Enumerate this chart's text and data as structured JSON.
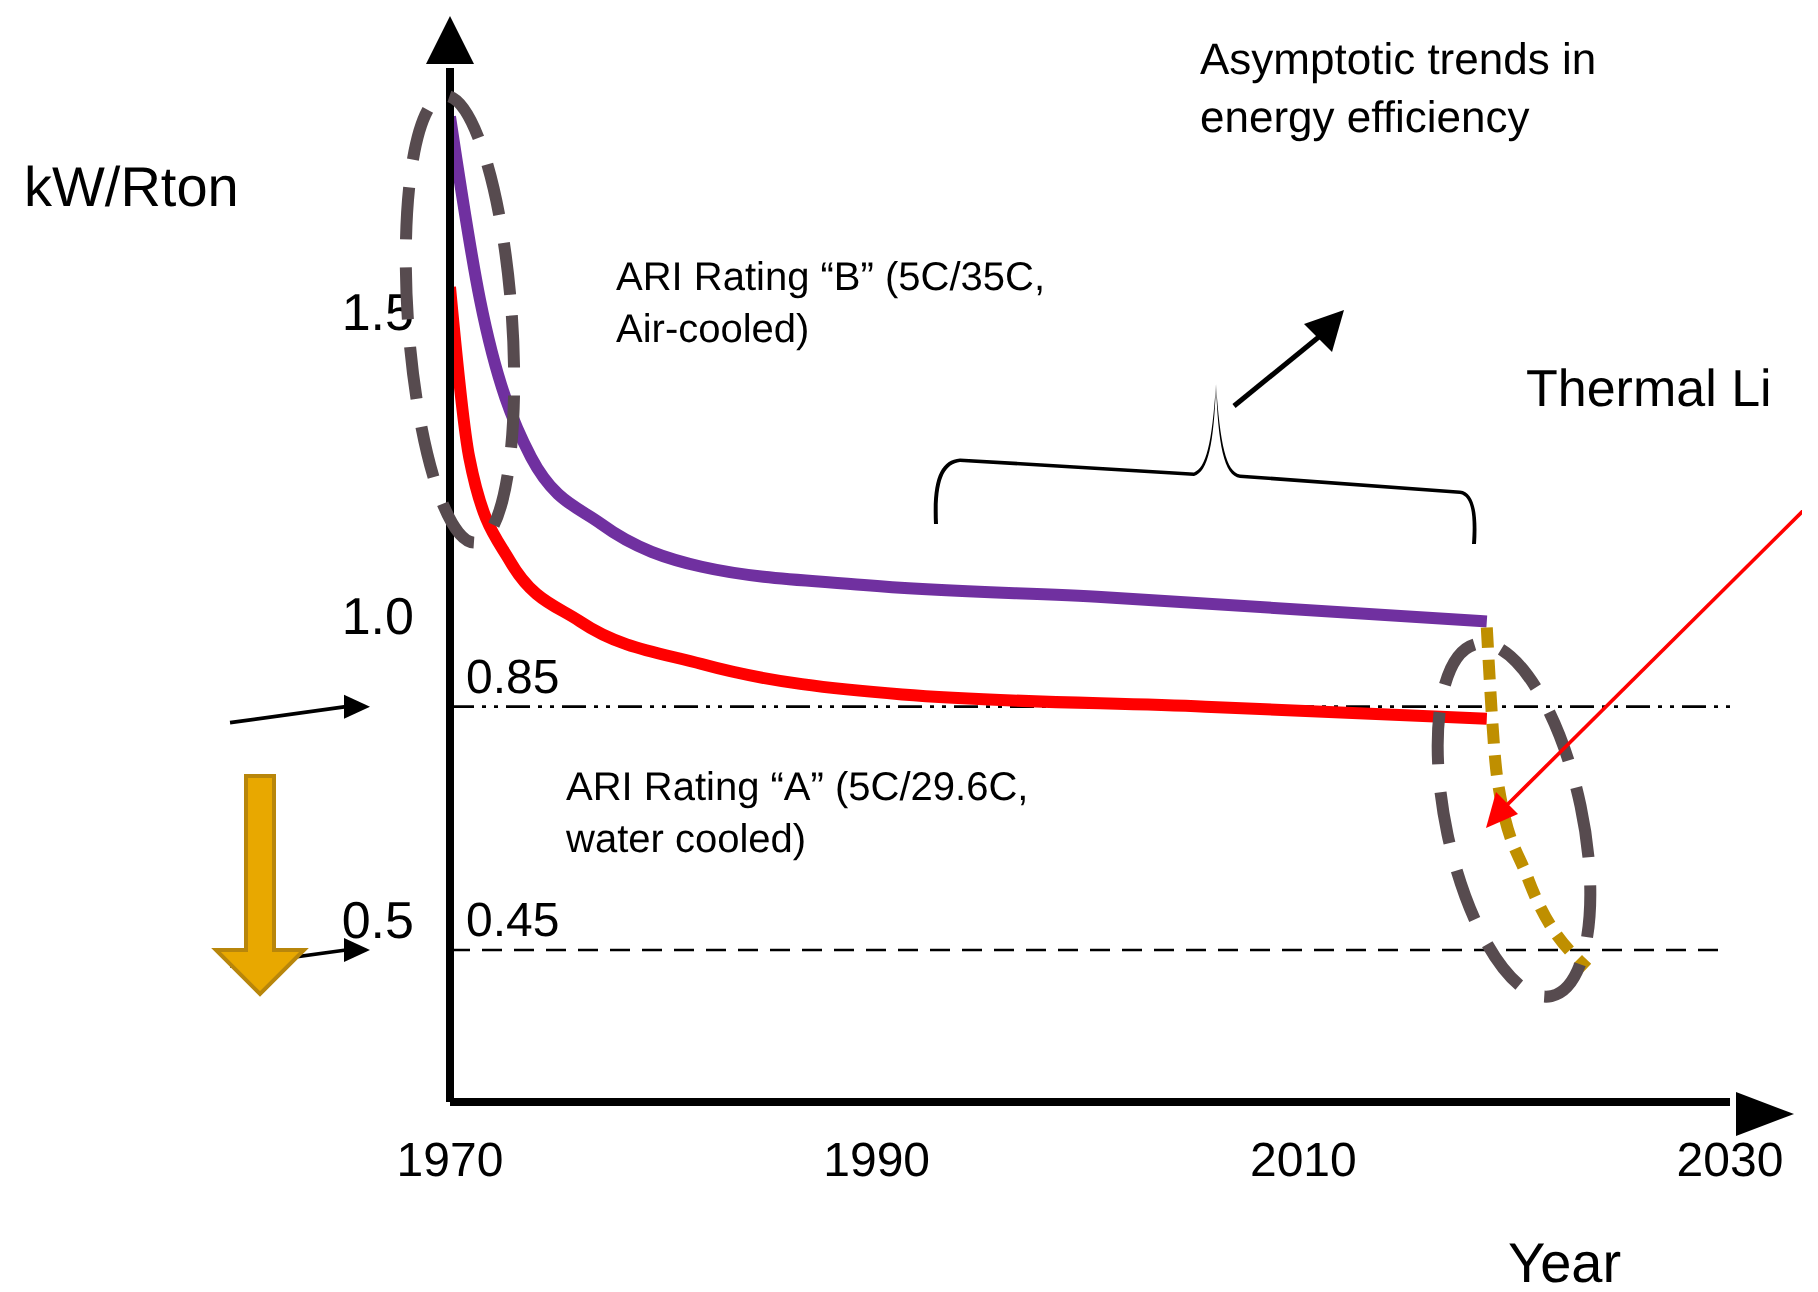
{
  "chart_data": {
    "type": "line",
    "xlabel": "Year",
    "ylabel": "kW/Rton",
    "xlim": [
      1970,
      2030
    ],
    "xticks": [
      1970,
      1990,
      2010,
      2030
    ],
    "ylim": [
      0.2,
      1.9
    ],
    "yticks": [
      0.5,
      {
        "value": 1,
        "label": "1.0"
      },
      1.5
    ],
    "grid": false,
    "legend": false,
    "marker": "none",
    "series": [
      {
        "color": "#7030a0",
        "line_style": "solid",
        "x": [
          1970,
          1971.4,
          1973.8,
          1977.1,
          1981.8,
          1989.4,
          2000.7,
          2018.6
        ],
        "values": [
          1.82,
          1.52,
          1.26,
          1.15,
          1.08,
          1.05,
          1.03,
          0.99
        ]
      },
      {
        "color": "#ff0000",
        "line_style": "solid",
        "x": [
          1970,
          1970.9,
          1972.8,
          1976.1,
          1981.8,
          1991.2,
          2005.4,
          2018.6
        ],
        "values": [
          1.54,
          1.26,
          1.09,
          0.99,
          0.92,
          0.87,
          0.85,
          0.83
        ]
      },
      {
        "color": "#bf8f00",
        "line_style": "dashed",
        "x": [
          2018.6,
          2019.1,
          2020.5,
          2023.3
        ],
        "values": [
          0.98,
          0.73,
          0.57,
          0.42
        ]
      }
    ],
    "ref_lines": [
      {
        "axis": "y",
        "value": 0.85,
        "label": "0.85",
        "line_style": "dotted",
        "color": "#000000"
      },
      {
        "axis": "y",
        "value": 0.45,
        "label": "0.45",
        "line_style": "dashed",
        "color": "#000000"
      }
    ],
    "annotations": [
      "ARI Rating “B” (5C/35C, Air-cooled)",
      "ARI Rating “A” (5C/29.6C, water cooled)",
      "Asymptotic trends in energy efficiency",
      "Thermal Li"
    ]
  }
}
